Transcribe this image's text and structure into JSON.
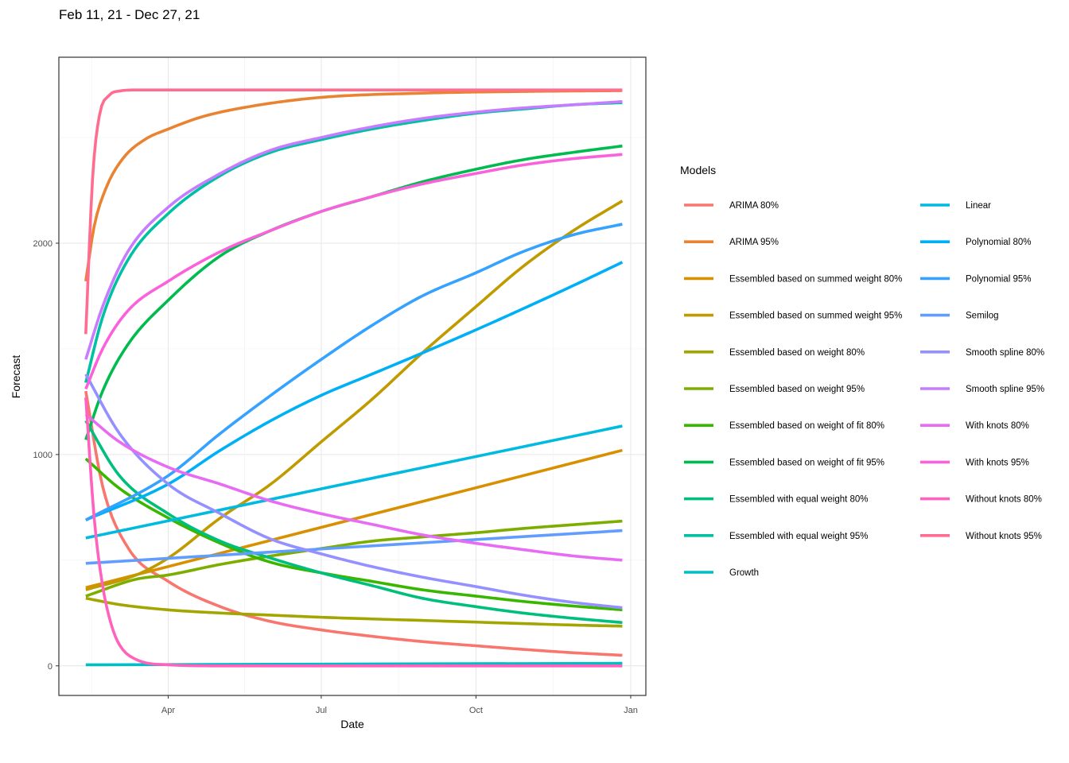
{
  "title": "Feb 11, 21 - Dec 27, 21",
  "chart_data": {
    "type": "line",
    "title": "Feb 11, 21 - Dec 27, 21",
    "xlabel": "Date",
    "ylabel": "Forecast",
    "x_ticks": [
      {
        "label": "Apr",
        "day": 49
      },
      {
        "label": "Jul",
        "day": 140
      },
      {
        "label": "Oct",
        "day": 232
      },
      {
        "label": "Jan",
        "day": 324
      }
    ],
    "y_ticks": [
      0,
      1000,
      2000
    ],
    "xlim_days": [
      -16,
      333
    ],
    "ylim": [
      -140,
      2880
    ],
    "x_day0": "2021-02-11",
    "x_day_end": "2021-12-27",
    "grid": true,
    "legend_title": "Models",
    "legend_position": "right",
    "series": [
      {
        "name": "ARIMA 80%",
        "color": "#F8766D",
        "points": [
          [
            0,
            1300
          ],
          [
            10,
            850
          ],
          [
            25,
            560
          ],
          [
            49,
            400
          ],
          [
            80,
            280
          ],
          [
            110,
            210
          ],
          [
            140,
            170
          ],
          [
            170,
            140
          ],
          [
            200,
            115
          ],
          [
            232,
            95
          ],
          [
            260,
            78
          ],
          [
            290,
            62
          ],
          [
            319,
            50
          ]
        ]
      },
      {
        "name": "ARIMA 95%",
        "color": "#EA8331",
        "points": [
          [
            0,
            1820
          ],
          [
            5,
            2080
          ],
          [
            12,
            2260
          ],
          [
            22,
            2400
          ],
          [
            35,
            2490
          ],
          [
            49,
            2540
          ],
          [
            70,
            2600
          ],
          [
            100,
            2650
          ],
          [
            140,
            2690
          ],
          [
            200,
            2710
          ],
          [
            260,
            2718
          ],
          [
            319,
            2722
          ]
        ]
      },
      {
        "name": "Essembled based on summed weight 80%",
        "color": "#D89000",
        "points": [
          [
            0,
            370
          ],
          [
            319,
            1020
          ]
        ]
      },
      {
        "name": "Essembled based on summed weight 95%",
        "color": "#C09B00",
        "points": [
          [
            0,
            360
          ],
          [
            30,
            430
          ],
          [
            49,
            510
          ],
          [
            80,
            700
          ],
          [
            110,
            860
          ],
          [
            140,
            1060
          ],
          [
            170,
            1260
          ],
          [
            200,
            1480
          ],
          [
            232,
            1700
          ],
          [
            260,
            1890
          ],
          [
            290,
            2060
          ],
          [
            319,
            2200
          ]
        ]
      },
      {
        "name": "Essembled based on weight 80%",
        "color": "#A3A500",
        "points": [
          [
            0,
            320
          ],
          [
            20,
            290
          ],
          [
            49,
            265
          ],
          [
            80,
            250
          ],
          [
            110,
            240
          ],
          [
            140,
            230
          ],
          [
            170,
            222
          ],
          [
            200,
            215
          ],
          [
            232,
            207
          ],
          [
            260,
            200
          ],
          [
            290,
            193
          ],
          [
            319,
            188
          ]
        ]
      },
      {
        "name": "Essembled based on weight 95%",
        "color": "#7CAE00",
        "points": [
          [
            0,
            330
          ],
          [
            30,
            410
          ],
          [
            49,
            430
          ],
          [
            80,
            480
          ],
          [
            110,
            520
          ],
          [
            140,
            555
          ],
          [
            170,
            590
          ],
          [
            200,
            610
          ],
          [
            232,
            630
          ],
          [
            260,
            650
          ],
          [
            290,
            668
          ],
          [
            319,
            685
          ]
        ]
      },
      {
        "name": "Essembled based on weight of fit 80%",
        "color": "#39B600",
        "points": [
          [
            0,
            980
          ],
          [
            20,
            840
          ],
          [
            49,
            700
          ],
          [
            80,
            580
          ],
          [
            110,
            490
          ],
          [
            140,
            440
          ],
          [
            170,
            400
          ],
          [
            200,
            360
          ],
          [
            232,
            330
          ],
          [
            260,
            305
          ],
          [
            290,
            283
          ],
          [
            319,
            265
          ]
        ]
      },
      {
        "name": "Essembled based on weight of fit 95%",
        "color": "#00BB4E",
        "points": [
          [
            0,
            1070
          ],
          [
            10,
            1300
          ],
          [
            25,
            1520
          ],
          [
            49,
            1730
          ],
          [
            80,
            1940
          ],
          [
            110,
            2060
          ],
          [
            140,
            2150
          ],
          [
            170,
            2220
          ],
          [
            200,
            2290
          ],
          [
            232,
            2350
          ],
          [
            260,
            2395
          ],
          [
            290,
            2430
          ],
          [
            319,
            2460
          ]
        ]
      },
      {
        "name": "Essembled with equal weight 80%",
        "color": "#00BF7D",
        "points": [
          [
            0,
            1160
          ],
          [
            20,
            900
          ],
          [
            49,
            720
          ],
          [
            80,
            590
          ],
          [
            110,
            510
          ],
          [
            140,
            440
          ],
          [
            170,
            380
          ],
          [
            200,
            320
          ],
          [
            232,
            280
          ],
          [
            260,
            250
          ],
          [
            290,
            225
          ],
          [
            319,
            205
          ]
        ]
      },
      {
        "name": "Essembled with equal weight 95%",
        "color": "#00C1A3",
        "points": [
          [
            0,
            1340
          ],
          [
            10,
            1650
          ],
          [
            25,
            1920
          ],
          [
            49,
            2140
          ],
          [
            80,
            2320
          ],
          [
            110,
            2430
          ],
          [
            140,
            2490
          ],
          [
            170,
            2540
          ],
          [
            200,
            2580
          ],
          [
            232,
            2615
          ],
          [
            260,
            2635
          ],
          [
            290,
            2655
          ],
          [
            319,
            2665
          ]
        ]
      },
      {
        "name": "Growth",
        "color": "#00BFC4",
        "points": [
          [
            0,
            5
          ],
          [
            319,
            12
          ]
        ]
      },
      {
        "name": "Linear",
        "color": "#00BAE0",
        "points": [
          [
            0,
            605
          ],
          [
            319,
            1135
          ]
        ]
      },
      {
        "name": "Polynomial 80%",
        "color": "#00B0F6",
        "points": [
          [
            0,
            690
          ],
          [
            49,
            860
          ],
          [
            80,
            1020
          ],
          [
            110,
            1160
          ],
          [
            140,
            1280
          ],
          [
            170,
            1380
          ],
          [
            200,
            1480
          ],
          [
            232,
            1590
          ],
          [
            260,
            1690
          ],
          [
            290,
            1800
          ],
          [
            319,
            1910
          ]
        ]
      },
      {
        "name": "Polynomial 95%",
        "color": "#35A2FF",
        "points": [
          [
            0,
            690
          ],
          [
            49,
            900
          ],
          [
            80,
            1100
          ],
          [
            110,
            1280
          ],
          [
            140,
            1450
          ],
          [
            170,
            1610
          ],
          [
            200,
            1750
          ],
          [
            232,
            1860
          ],
          [
            260,
            1960
          ],
          [
            290,
            2040
          ],
          [
            319,
            2090
          ]
        ]
      },
      {
        "name": "Semilog",
        "color": "#619CFF",
        "points": [
          [
            0,
            485
          ],
          [
            319,
            640
          ]
        ]
      },
      {
        "name": "Smooth spline 80%",
        "color": "#9590FF",
        "points": [
          [
            0,
            1380
          ],
          [
            20,
            1100
          ],
          [
            49,
            860
          ],
          [
            80,
            720
          ],
          [
            110,
            600
          ],
          [
            140,
            530
          ],
          [
            170,
            470
          ],
          [
            200,
            420
          ],
          [
            232,
            375
          ],
          [
            260,
            335
          ],
          [
            290,
            300
          ],
          [
            319,
            275
          ]
        ]
      },
      {
        "name": "Smooth spline 95%",
        "color": "#C77CFF",
        "points": [
          [
            0,
            1450
          ],
          [
            10,
            1700
          ],
          [
            25,
            1960
          ],
          [
            49,
            2170
          ],
          [
            80,
            2330
          ],
          [
            110,
            2440
          ],
          [
            140,
            2500
          ],
          [
            170,
            2550
          ],
          [
            200,
            2590
          ],
          [
            232,
            2620
          ],
          [
            260,
            2640
          ],
          [
            290,
            2655
          ],
          [
            319,
            2670
          ]
        ]
      },
      {
        "name": "With knots 80%",
        "color": "#E76BF3",
        "points": [
          [
            0,
            1190
          ],
          [
            20,
            1060
          ],
          [
            49,
            940
          ],
          [
            80,
            860
          ],
          [
            110,
            780
          ],
          [
            140,
            720
          ],
          [
            170,
            670
          ],
          [
            200,
            620
          ],
          [
            232,
            580
          ],
          [
            260,
            550
          ],
          [
            290,
            520
          ],
          [
            319,
            500
          ]
        ]
      },
      {
        "name": "With knots 95%",
        "color": "#FA62DB",
        "points": [
          [
            0,
            1310
          ],
          [
            10,
            1500
          ],
          [
            25,
            1680
          ],
          [
            49,
            1820
          ],
          [
            80,
            1960
          ],
          [
            110,
            2060
          ],
          [
            140,
            2150
          ],
          [
            170,
            2220
          ],
          [
            200,
            2280
          ],
          [
            232,
            2330
          ],
          [
            260,
            2370
          ],
          [
            290,
            2400
          ],
          [
            319,
            2420
          ]
        ]
      },
      {
        "name": "Without knots 80%",
        "color": "#FF62BC",
        "points": [
          [
            0,
            1270
          ],
          [
            5,
            700
          ],
          [
            10,
            380
          ],
          [
            15,
            200
          ],
          [
            20,
            100
          ],
          [
            30,
            30
          ],
          [
            49,
            5
          ],
          [
            80,
            0
          ],
          [
            319,
            0
          ]
        ]
      },
      {
        "name": "Without knots 95%",
        "color": "#FF6C90",
        "points": [
          [
            0,
            1570
          ],
          [
            4,
            2300
          ],
          [
            8,
            2600
          ],
          [
            14,
            2700
          ],
          [
            20,
            2720
          ],
          [
            30,
            2725
          ],
          [
            100,
            2725
          ],
          [
            319,
            2725
          ]
        ]
      }
    ]
  }
}
